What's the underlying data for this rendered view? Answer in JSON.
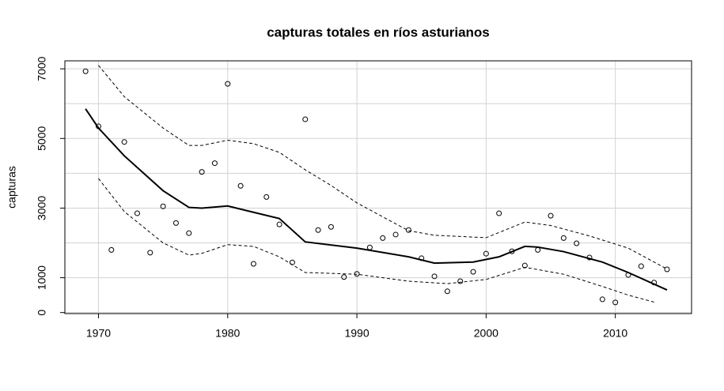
{
  "chart_data": {
    "type": "scatter-smooth",
    "title": "capturas totales en ríos asturianos",
    "ylabel": "capturas",
    "xlim": [
      1967.4,
      2015.9
    ],
    "ylim": [
      -30,
      7230
    ],
    "xticks": [
      1970,
      1980,
      1990,
      2000,
      2010
    ],
    "yticks": [
      0,
      1000,
      3000,
      5000,
      7000
    ],
    "ygrid": [
      0,
      1000,
      2000,
      3000,
      4000,
      5000,
      6000,
      7000
    ],
    "grid": true,
    "points": {
      "x": [
        1969,
        1970,
        1971,
        1972,
        1973,
        1974,
        1975,
        1976,
        1977,
        1978,
        1979,
        1980,
        1981,
        1982,
        1983,
        1984,
        1985,
        1986,
        1987,
        1988,
        1989,
        1990,
        1991,
        1992,
        1993,
        1994,
        1995,
        1996,
        1997,
        1998,
        1999,
        2000,
        2001,
        2002,
        2003,
        2004,
        2005,
        2006,
        2007,
        2008,
        2009,
        2010,
        2011,
        2012,
        2013,
        2014
      ],
      "values": [
        6930,
        5350,
        1800,
        4900,
        2850,
        1720,
        3050,
        2570,
        2280,
        4040,
        4290,
        6570,
        3640,
        1400,
        3320,
        2530,
        1440,
        5550,
        2370,
        2460,
        1020,
        1110,
        1870,
        2140,
        2240,
        2370,
        1560,
        1040,
        610,
        900,
        1170,
        1690,
        2850,
        1760,
        1350,
        1800,
        2780,
        2140,
        1990,
        1580,
        380,
        290,
        1080,
        1330,
        860,
        1240
      ]
    },
    "lines": [
      {
        "style": "solid",
        "x": [
          1969,
          1970,
          1972,
          1975,
          1977,
          1978,
          1980,
          1982,
          1984,
          1986,
          1990,
          1994,
          1996,
          1999,
          2001,
          2003,
          2004,
          2006,
          2009,
          2011,
          2014
        ],
        "values": [
          5850,
          5300,
          4500,
          3500,
          3020,
          3000,
          3060,
          2880,
          2700,
          2030,
          1850,
          1600,
          1420,
          1450,
          1600,
          1900,
          1880,
          1750,
          1450,
          1150,
          650
        ]
      },
      {
        "style": "dashed",
        "x": [
          1970,
          1972,
          1975,
          1977,
          1978,
          1980,
          1982,
          1984,
          1986,
          1988,
          1990,
          1992,
          1994,
          1996,
          2000,
          2003,
          2005,
          2008,
          2011,
          2014
        ],
        "values": [
          7100,
          6200,
          5300,
          4800,
          4800,
          4950,
          4850,
          4600,
          4100,
          3650,
          3150,
          2750,
          2350,
          2220,
          2150,
          2600,
          2500,
          2200,
          1850,
          1250
        ]
      },
      {
        "style": "dashed",
        "x": [
          1970,
          1972,
          1975,
          1977,
          1978,
          1980,
          1982,
          1984,
          1986,
          1990,
          1994,
          1997,
          2000,
          2003,
          2006,
          2009,
          2011,
          2013
        ],
        "values": [
          3850,
          2900,
          2000,
          1650,
          1700,
          1950,
          1900,
          1600,
          1150,
          1100,
          900,
          830,
          950,
          1300,
          1100,
          750,
          500,
          300
        ]
      }
    ]
  }
}
